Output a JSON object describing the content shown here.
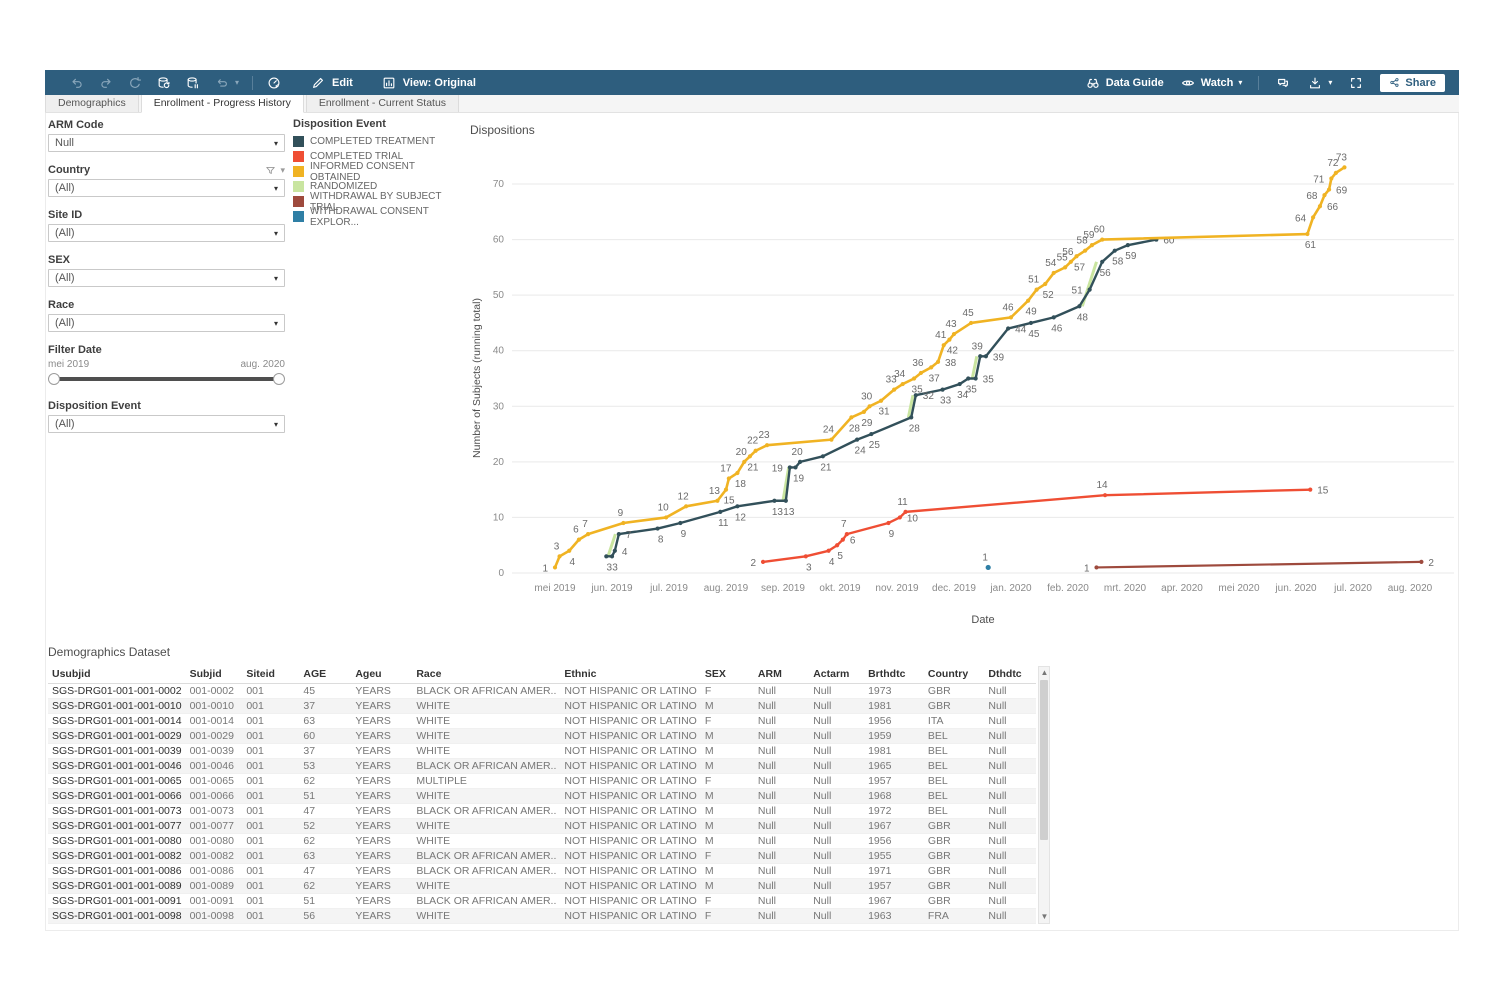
{
  "toolbar": {
    "left_icons": [
      {
        "name": "undo",
        "muted": true
      },
      {
        "name": "redo",
        "muted": true
      },
      {
        "name": "revert",
        "muted": true
      },
      {
        "name": "refresh-data",
        "muted": false
      },
      {
        "name": "pause-updates",
        "muted": false
      },
      {
        "name": "auto-update",
        "muted": true,
        "caret": true
      },
      {
        "name": "divider"
      },
      {
        "name": "acceleration",
        "muted": false
      }
    ],
    "edit_label": "Edit",
    "view_label": "View: Original",
    "data_guide_label": "Data Guide",
    "watch_label": "Watch",
    "right_icons": [
      "comment",
      "download",
      "fullscreen"
    ],
    "share_label": "Share"
  },
  "tabs": [
    {
      "label": "Demographics",
      "active": false
    },
    {
      "label": "Enrollment - Progress History",
      "active": true
    },
    {
      "label": "Enrollment - Current Status",
      "active": false
    }
  ],
  "filters": [
    {
      "id": "arm-code",
      "label": "ARM Code",
      "type": "dropdown",
      "value": "Null"
    },
    {
      "id": "country",
      "label": "Country",
      "type": "dropdown",
      "value": "(All)",
      "has_funnel": true,
      "has_caret": true
    },
    {
      "id": "site-id",
      "label": "Site ID",
      "type": "dropdown",
      "value": "(All)"
    },
    {
      "id": "sex",
      "label": "SEX",
      "type": "dropdown",
      "value": "(All)"
    },
    {
      "id": "race",
      "label": "Race",
      "type": "dropdown",
      "value": "(All)"
    },
    {
      "id": "filter-date",
      "label": "Filter Date",
      "type": "range",
      "min": "mei 2019",
      "max": "aug. 2020"
    },
    {
      "id": "disposition-event",
      "label": "Disposition Event",
      "type": "dropdown",
      "value": "(All)"
    }
  ],
  "legend": {
    "title": "Disposition Event",
    "items": [
      {
        "label": "COMPLETED TREATMENT",
        "color": "#32505a"
      },
      {
        "label": "COMPLETED TRIAL",
        "color": "#ef4e34"
      },
      {
        "label": "INFORMED CONSENT OBTAINED",
        "color": "#f0b323"
      },
      {
        "label": "RANDOMIZED",
        "color": "#c9e5a0"
      },
      {
        "label": "WITHDRAWAL BY SUBJECT TRIAL",
        "color": "#9e4a3d"
      },
      {
        "label": "WITHDRAWAL CONSENT EXPLOR...",
        "color": "#2f7fa5"
      }
    ]
  },
  "chart_data": {
    "type": "line",
    "title": "Dispositions",
    "xlabel": "Date",
    "ylabel": "Number of Subjects (running total)",
    "x_ticks": [
      "mei 2019",
      "jun. 2019",
      "jul. 2019",
      "aug. 2019",
      "sep. 2019",
      "okt. 2019",
      "nov. 2019",
      "dec. 2019",
      "jan. 2020",
      "feb. 2020",
      "mrt. 2020",
      "apr. 2020",
      "mei 2020",
      "jun. 2020",
      "jul. 2020",
      "aug. 2020"
    ],
    "y_ticks": [
      0,
      10,
      20,
      30,
      40,
      50,
      60,
      70
    ],
    "ylim": [
      0,
      75
    ],
    "legend_position": "upper-left-panel",
    "grid": "horizontal",
    "series": [
      {
        "name": "RANDOMIZED",
        "color": "#c9e5a0",
        "width": 3,
        "segments": [
          [
            [
              0.93,
              3
            ],
            [
              1.06,
              7
            ]
          ],
          [
            [
              4.0,
              13
            ],
            [
              4.1,
              19
            ]
          ],
          [
            [
              6.2,
              28
            ],
            [
              6.28,
              32
            ]
          ],
          [
            [
              7.32,
              35
            ],
            [
              7.4,
              39
            ]
          ],
          [
            [
              9.25,
              48
            ],
            [
              9.5,
              56
            ]
          ]
        ]
      },
      {
        "name": "COMPLETED TREATMENT",
        "color": "#32505a",
        "width": 2.4,
        "label_side": "b",
        "points": [
          [
            0.9,
            3
          ],
          [
            1.0,
            3
          ],
          [
            1.05,
            4,
            "r"
          ],
          [
            1.12,
            7,
            "r"
          ],
          [
            1.8,
            8
          ],
          [
            2.2,
            9
          ],
          [
            2.9,
            11
          ],
          [
            3.2,
            12
          ],
          [
            3.85,
            13
          ],
          [
            4.05,
            13
          ],
          [
            4.12,
            19,
            "l"
          ],
          [
            4.22,
            19
          ],
          [
            4.3,
            20,
            "a"
          ],
          [
            4.7,
            21
          ],
          [
            5.3,
            24
          ],
          [
            5.55,
            25
          ],
          [
            6.25,
            28
          ],
          [
            6.33,
            32,
            "r"
          ],
          [
            6.8,
            33
          ],
          [
            7.1,
            34
          ],
          [
            7.25,
            35
          ],
          [
            7.38,
            35,
            "r"
          ],
          [
            7.46,
            39,
            "a"
          ],
          [
            7.56,
            39,
            "r"
          ],
          [
            7.95,
            44,
            "r"
          ],
          [
            8.35,
            45
          ],
          [
            8.75,
            46
          ],
          [
            9.2,
            48
          ],
          [
            9.38,
            51,
            "l"
          ],
          [
            9.6,
            56
          ],
          [
            9.82,
            58
          ],
          [
            10.05,
            59
          ],
          [
            10.55,
            60,
            "r"
          ]
        ]
      },
      {
        "name": "INFORMED CONSENT OBTAINED",
        "color": "#f0b323",
        "width": 2.6,
        "label_side": "a",
        "points": [
          [
            0,
            1,
            "l"
          ],
          [
            0.08,
            3
          ],
          [
            0.25,
            4,
            "b"
          ],
          [
            0.42,
            6
          ],
          [
            0.58,
            7
          ],
          [
            1.2,
            9
          ],
          [
            1.95,
            10
          ],
          [
            2.3,
            12
          ],
          [
            2.85,
            13
          ],
          [
            3.0,
            15,
            "b"
          ],
          [
            3.05,
            17
          ],
          [
            3.2,
            18,
            "b"
          ],
          [
            3.32,
            20
          ],
          [
            3.42,
            21,
            "b"
          ],
          [
            3.52,
            22
          ],
          [
            3.72,
            23
          ],
          [
            4.85,
            24
          ],
          [
            5.2,
            28,
            "b"
          ],
          [
            5.42,
            29,
            "b"
          ],
          [
            5.52,
            30
          ],
          [
            5.72,
            31,
            "b"
          ],
          [
            5.95,
            33
          ],
          [
            6.1,
            34
          ],
          [
            6.3,
            35,
            "b"
          ],
          [
            6.42,
            36
          ],
          [
            6.6,
            37,
            "b"
          ],
          [
            6.72,
            38,
            "r"
          ],
          [
            6.82,
            41
          ],
          [
            6.92,
            42,
            "b"
          ],
          [
            7.0,
            43
          ],
          [
            7.3,
            45
          ],
          [
            8.0,
            46
          ],
          [
            8.3,
            49,
            "b"
          ],
          [
            8.45,
            51
          ],
          [
            8.6,
            52,
            "b"
          ],
          [
            8.75,
            54
          ],
          [
            8.95,
            55
          ],
          [
            9.05,
            56
          ],
          [
            9.15,
            57,
            "b"
          ],
          [
            9.3,
            58
          ],
          [
            9.42,
            59
          ],
          [
            9.6,
            60
          ],
          [
            13.2,
            61,
            "b"
          ],
          [
            13.3,
            64,
            "l"
          ],
          [
            13.42,
            66,
            "r"
          ],
          [
            13.5,
            68,
            "l"
          ],
          [
            13.58,
            69,
            "r"
          ],
          [
            13.62,
            71,
            "l"
          ],
          [
            13.7,
            72
          ],
          [
            13.85,
            73
          ]
        ]
      },
      {
        "name": "COMPLETED TRIAL",
        "color": "#ef4e34",
        "width": 2.4,
        "label_side": "b",
        "points": [
          [
            3.65,
            2,
            "l"
          ],
          [
            4.4,
            3
          ],
          [
            4.8,
            4
          ],
          [
            4.95,
            5
          ],
          [
            5.05,
            6,
            "r"
          ],
          [
            5.12,
            7,
            "a"
          ],
          [
            5.85,
            9
          ],
          [
            6.05,
            10,
            "r"
          ],
          [
            6.15,
            11,
            "a"
          ],
          [
            9.65,
            14,
            "a"
          ],
          [
            13.25,
            15,
            "r"
          ]
        ]
      },
      {
        "name": "WITHDRAWAL BY SUBJECT TRIAL",
        "color": "#9e4a3d",
        "width": 2.2,
        "label_side": "b",
        "points": [
          [
            9.5,
            1,
            "l"
          ],
          [
            15.2,
            2,
            "r"
          ]
        ]
      },
      {
        "name": "WITHDRAWAL CONSENT EXPLOR...",
        "color": "#2f7fa5",
        "width": 2,
        "label_side": "a",
        "dot_only": true,
        "points": [
          [
            7.6,
            1,
            "a"
          ]
        ]
      }
    ]
  },
  "table": {
    "title": "Demographics Dataset",
    "columns": [
      "Usubjid",
      "Subjid",
      "Siteid",
      "AGE",
      "Ageu",
      "Race",
      "Ethnic",
      "SEX",
      "ARM",
      "Actarm",
      "Brthdtc",
      "Country",
      "Dthdtc"
    ],
    "rows": [
      [
        "SGS-DRG01-001-001-0002",
        "001-0002",
        "001",
        "45",
        "YEARS",
        "BLACK OR AFRICAN AMER..",
        "NOT HISPANIC OR LATINO",
        "F",
        "Null",
        "Null",
        "1973",
        "GBR",
        "Null"
      ],
      [
        "SGS-DRG01-001-001-0010",
        "001-0010",
        "001",
        "37",
        "YEARS",
        "WHITE",
        "NOT HISPANIC OR LATINO",
        "M",
        "Null",
        "Null",
        "1981",
        "GBR",
        "Null"
      ],
      [
        "SGS-DRG01-001-001-0014",
        "001-0014",
        "001",
        "63",
        "YEARS",
        "WHITE",
        "NOT HISPANIC OR LATINO",
        "F",
        "Null",
        "Null",
        "1956",
        "ITA",
        "Null"
      ],
      [
        "SGS-DRG01-001-001-0029",
        "001-0029",
        "001",
        "60",
        "YEARS",
        "WHITE",
        "NOT HISPANIC OR LATINO",
        "M",
        "Null",
        "Null",
        "1959",
        "BEL",
        "Null"
      ],
      [
        "SGS-DRG01-001-001-0039",
        "001-0039",
        "001",
        "37",
        "YEARS",
        "WHITE",
        "NOT HISPANIC OR LATINO",
        "M",
        "Null",
        "Null",
        "1981",
        "BEL",
        "Null"
      ],
      [
        "SGS-DRG01-001-001-0046",
        "001-0046",
        "001",
        "53",
        "YEARS",
        "BLACK OR AFRICAN AMER..",
        "NOT HISPANIC OR LATINO",
        "M",
        "Null",
        "Null",
        "1965",
        "BEL",
        "Null"
      ],
      [
        "SGS-DRG01-001-001-0065",
        "001-0065",
        "001",
        "62",
        "YEARS",
        "MULTIPLE",
        "NOT HISPANIC OR LATINO",
        "F",
        "Null",
        "Null",
        "1957",
        "BEL",
        "Null"
      ],
      [
        "SGS-DRG01-001-001-0066",
        "001-0066",
        "001",
        "51",
        "YEARS",
        "WHITE",
        "NOT HISPANIC OR LATINO",
        "M",
        "Null",
        "Null",
        "1968",
        "BEL",
        "Null"
      ],
      [
        "SGS-DRG01-001-001-0073",
        "001-0073",
        "001",
        "47",
        "YEARS",
        "BLACK OR AFRICAN AMER..",
        "NOT HISPANIC OR LATINO",
        "M",
        "Null",
        "Null",
        "1972",
        "BEL",
        "Null"
      ],
      [
        "SGS-DRG01-001-001-0077",
        "001-0077",
        "001",
        "52",
        "YEARS",
        "WHITE",
        "NOT HISPANIC OR LATINO",
        "M",
        "Null",
        "Null",
        "1967",
        "GBR",
        "Null"
      ],
      [
        "SGS-DRG01-001-001-0080",
        "001-0080",
        "001",
        "62",
        "YEARS",
        "WHITE",
        "NOT HISPANIC OR LATINO",
        "M",
        "Null",
        "Null",
        "1956",
        "GBR",
        "Null"
      ],
      [
        "SGS-DRG01-001-001-0082",
        "001-0082",
        "001",
        "63",
        "YEARS",
        "BLACK OR AFRICAN AMER..",
        "NOT HISPANIC OR LATINO",
        "F",
        "Null",
        "Null",
        "1955",
        "GBR",
        "Null"
      ],
      [
        "SGS-DRG01-001-001-0086",
        "001-0086",
        "001",
        "47",
        "YEARS",
        "BLACK OR AFRICAN AMER..",
        "NOT HISPANIC OR LATINO",
        "M",
        "Null",
        "Null",
        "1971",
        "GBR",
        "Null"
      ],
      [
        "SGS-DRG01-001-001-0089",
        "001-0089",
        "001",
        "62",
        "YEARS",
        "WHITE",
        "NOT HISPANIC OR LATINO",
        "M",
        "Null",
        "Null",
        "1957",
        "GBR",
        "Null"
      ],
      [
        "SGS-DRG01-001-001-0091",
        "001-0091",
        "001",
        "51",
        "YEARS",
        "BLACK OR AFRICAN AMER..",
        "NOT HISPANIC OR LATINO",
        "F",
        "Null",
        "Null",
        "1967",
        "GBR",
        "Null"
      ],
      [
        "SGS-DRG01-001-001-0098",
        "001-0098",
        "001",
        "56",
        "YEARS",
        "WHITE",
        "NOT HISPANIC OR LATINO",
        "F",
        "Null",
        "Null",
        "1963",
        "FRA",
        "Null"
      ]
    ]
  }
}
